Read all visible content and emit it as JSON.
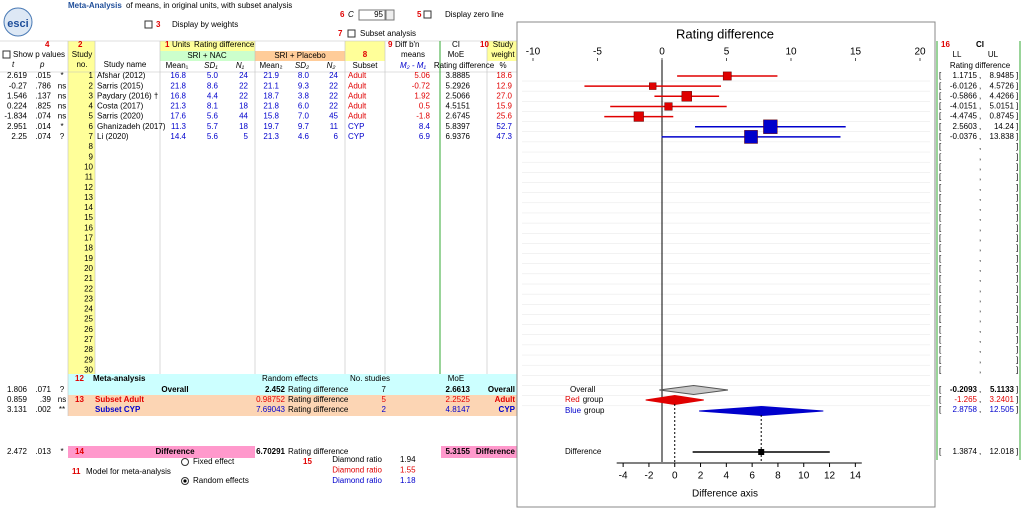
{
  "header": {
    "logo": "esci",
    "title_bold": "Meta-Analysis",
    "title_rest": "of means, in original units, with subset analysis",
    "weights_num": "3",
    "weights_label": "Display by weights",
    "c_num": "6",
    "c_symbol": "C",
    "c_value": "95",
    "zero_num": "5",
    "zero_label": "Display zero line",
    "subset_num": "7",
    "subset_label": "Subset analysis"
  },
  "columns": {
    "p_num": "4",
    "show_p": "Show p values",
    "t": "t",
    "p": "p",
    "no_num": "2",
    "no_1": "Study",
    "no_2": "no.",
    "name": "Study name",
    "units_num": "1",
    "units": "Units",
    "units_value": "Rating difference",
    "group1": "SRI + NAC",
    "group2": "SRI + Placebo",
    "mean1": "Mean₁",
    "sd1": "SD₁",
    "n1": "N₁",
    "mean2": "Mean₂",
    "sd2": "SD₂",
    "n2": "N₂",
    "subset_num": "8",
    "subset": "Subset",
    "diff_num": "9",
    "diff_1": "Diff b'n",
    "diff_2": "means",
    "diff_3": "M₂ - M₁",
    "ci": "CI",
    "moe": "MoE",
    "moe_units": "Rating difference",
    "weight_num": "10",
    "weight_1": "Study",
    "weight_2": "weight",
    "weight_3": "%"
  },
  "rows": [
    [
      "2.619",
      ".015",
      "*",
      "1",
      "Afshar (2012)",
      "16.8",
      "5.0",
      "24",
      "21.9",
      "8.0",
      "24",
      "Adult",
      "3.8885"
    ],
    [
      "-0.27",
      ".786",
      "ns",
      "2",
      "Sarris (2015)",
      "21.8",
      "8.6",
      "22",
      "21.1",
      "9.3",
      "22",
      "Adult",
      "5.2926"
    ],
    [
      "1.546",
      ".137",
      "ns",
      "3",
      "Paydary (2016) †",
      "16.8",
      "4.4",
      "22",
      "18.7",
      "3.8",
      "22",
      "Adult",
      "2.5066"
    ],
    [
      "0.224",
      ".825",
      "ns",
      "4",
      "Costa (2017)",
      "21.3",
      "8.1",
      "18",
      "21.8",
      "6.0",
      "22",
      "Adult",
      "4.5151"
    ],
    [
      "-1.834",
      ".074",
      "ns",
      "5",
      "Sarris (2020)",
      "17.6",
      "5.6",
      "44",
      "15.8",
      "7.0",
      "45",
      "Adult",
      "2.6745"
    ],
    [
      "2.951",
      ".014",
      "*",
      "6",
      "Ghanizadeh (2017)",
      "11.3",
      "5.7",
      "18",
      "19.7",
      "9.7",
      "11",
      "CYP",
      "5.8397"
    ],
    [
      "2.25",
      ".074",
      "?",
      "7",
      "Li (2020)",
      "14.4",
      "5.6",
      "5",
      "21.3",
      "4.6",
      "6",
      "CYP",
      "6.9376"
    ]
  ],
  "empty_rows": [
    8,
    9,
    10,
    11,
    12,
    13,
    14,
    15,
    16,
    17,
    18,
    19,
    20,
    21,
    22,
    23,
    24,
    25,
    26,
    27,
    28,
    29,
    30
  ],
  "meta": {
    "num": "12",
    "title": "Meta-analysis",
    "re": "Random effects",
    "studies": "No. studies",
    "moe": "MoE",
    "overall": {
      "t": "1.806",
      "p": ".071",
      "sig": "?",
      "label": "Overall",
      "units": "Rating difference",
      "k": "7",
      "moe": "2.6613",
      "tag": "Overall"
    },
    "adult": {
      "t": "0.859",
      "p": ".39",
      "sig": "ns",
      "num": "13",
      "label": "Subset Adult",
      "units": "Rating difference",
      "k": "5",
      "moe": "2.2525",
      "tag": "Adult"
    },
    "cyp": {
      "t": "3.131",
      "p": ".002",
      "sig": "**",
      "label": "Subset CYP",
      "units": "Rating difference",
      "k": "2",
      "moe": "4.8147",
      "tag": "CYP"
    },
    "difference": {
      "t": "2.472",
      "p": ".013",
      "sig": "*",
      "num": "14",
      "label": "Difference",
      "units": "Rating difference",
      "moe": "5.3155",
      "tag": "Difference"
    }
  },
  "model": {
    "num": "11",
    "label": "Model for meta-analysis",
    "fixed": "Fixed effect",
    "random": "Random effects"
  },
  "diamond": {
    "num": "15",
    "rows": [
      {
        "label": "Diamond ratio",
        "value": "1.94"
      },
      {
        "label": "Diamond ratio",
        "value": "1.55"
      },
      {
        "label": "Diamond ratio",
        "value": "1.18"
      }
    ]
  },
  "ci_panel": {
    "num": "16",
    "title": "CI",
    "ll": "LL",
    "ul": "UL",
    "units": "Rating difference",
    "open": "[",
    "sep": ",",
    "close": "]"
  },
  "chart_data": {
    "type": "forest",
    "title": "Rating difference",
    "xlim": [
      -10,
      20
    ],
    "xticks": [
      -10,
      -5,
      0,
      5,
      10,
      15,
      20
    ],
    "zero_line": true,
    "studies": {
      "values": [
        5.06,
        -0.72,
        1.92,
        0.5,
        -1.8,
        8.4,
        6.9
      ],
      "ll": [
        1.1715,
        -6.0126,
        -0.5866,
        -4.0151,
        -4.4745,
        2.5603,
        -0.0376
      ],
      "ul": [
        8.9485,
        4.5726,
        4.4266,
        5.0151,
        0.8745,
        14.24,
        13.838
      ],
      "weights": [
        18.6,
        12.9,
        27.0,
        15.9,
        25.6,
        52.7,
        47.3
      ],
      "weight_labels": [
        "18.6",
        "12.9",
        "27.0",
        "15.9",
        "25.6",
        "52.7",
        "47.3"
      ],
      "colors": [
        "#e00000",
        "#e00000",
        "#e00000",
        "#e00000",
        "#e00000",
        "#0000cc",
        "#0000cc"
      ]
    },
    "summaries": [
      {
        "label": "Overall",
        "value": 2.452,
        "ll": -0.2093,
        "ul": 5.1133,
        "color": "#c8c8c8"
      },
      {
        "label": "Red",
        "suffix": "group",
        "value": 0.98752,
        "ll": -1.265,
        "ul": 3.2401,
        "color": "#e00000"
      },
      {
        "label": "Blue",
        "suffix": "group",
        "value": 7.69043,
        "ll": 2.8758,
        "ul": 12.505,
        "color": "#0000cc"
      }
    ],
    "difference": {
      "label": "Difference",
      "value": 6.70291,
      "ll": 1.3874,
      "ul": 12.018
    },
    "diff_axis": {
      "title": "Difference axis",
      "xlim": [
        -4.5,
        14.5
      ],
      "xticks": [
        -4,
        -2,
        0,
        2,
        4,
        6,
        8,
        10,
        12,
        14
      ]
    }
  }
}
